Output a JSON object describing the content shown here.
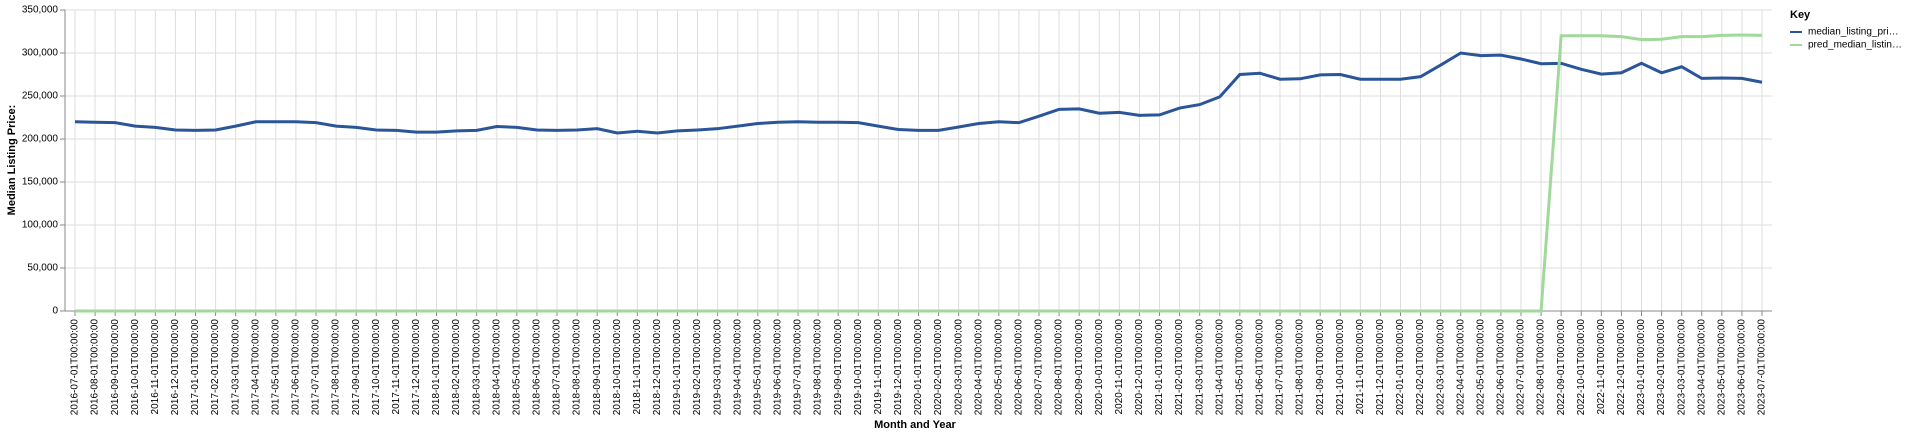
{
  "chart_data": {
    "type": "line",
    "x_label": "Month and Year",
    "y_label": "Median Listing Price:",
    "legend_title": "Key",
    "legend": "right",
    "grid": true,
    "categories": [
      "2016-07-01T00:00:00",
      "2016-08-01T00:00:00",
      "2016-09-01T00:00:00",
      "2016-10-01T00:00:00",
      "2016-11-01T00:00:00",
      "2016-12-01T00:00:00",
      "2017-01-01T00:00:00",
      "2017-02-01T00:00:00",
      "2017-03-01T00:00:00",
      "2017-04-01T00:00:00",
      "2017-05-01T00:00:00",
      "2017-06-01T00:00:00",
      "2017-07-01T00:00:00",
      "2017-08-01T00:00:00",
      "2017-09-01T00:00:00",
      "2017-10-01T00:00:00",
      "2017-11-01T00:00:00",
      "2017-12-01T00:00:00",
      "2018-01-01T00:00:00",
      "2018-02-01T00:00:00",
      "2018-03-01T00:00:00",
      "2018-04-01T00:00:00",
      "2018-05-01T00:00:00",
      "2018-06-01T00:00:00",
      "2018-07-01T00:00:00",
      "2018-08-01T00:00:00",
      "2018-09-01T00:00:00",
      "2018-10-01T00:00:00",
      "2018-11-01T00:00:00",
      "2018-12-01T00:00:00",
      "2019-01-01T00:00:00",
      "2019-02-01T00:00:00",
      "2019-03-01T00:00:00",
      "2019-04-01T00:00:00",
      "2019-05-01T00:00:00",
      "2019-06-01T00:00:00",
      "2019-07-01T00:00:00",
      "2019-08-01T00:00:00",
      "2019-09-01T00:00:00",
      "2019-10-01T00:00:00",
      "2019-11-01T00:00:00",
      "2019-12-01T00:00:00",
      "2020-01-01T00:00:00",
      "2020-02-01T00:00:00",
      "2020-03-01T00:00:00",
      "2020-04-01T00:00:00",
      "2020-05-01T00:00:00",
      "2020-06-01T00:00:00",
      "2020-07-01T00:00:00",
      "2020-08-01T00:00:00",
      "2020-09-01T00:00:00",
      "2020-10-01T00:00:00",
      "2020-11-01T00:00:00",
      "2020-12-01T00:00:00",
      "2021-01-01T00:00:00",
      "2021-02-01T00:00:00",
      "2021-03-01T00:00:00",
      "2021-04-01T00:00:00",
      "2021-05-01T00:00:00",
      "2021-06-01T00:00:00",
      "2021-07-01T00:00:00",
      "2021-08-01T00:00:00",
      "2021-09-01T00:00:00",
      "2021-10-01T00:00:00",
      "2021-11-01T00:00:00",
      "2021-12-01T00:00:00",
      "2022-01-01T00:00:00",
      "2022-02-01T00:00:00",
      "2022-03-01T00:00:00",
      "2022-04-01T00:00:00",
      "2022-05-01T00:00:00",
      "2022-06-01T00:00:00",
      "2022-07-01T00:00:00",
      "2022-08-01T00:00:00",
      "2022-09-01T00:00:00",
      "2022-10-01T00:00:00",
      "2022-11-01T00:00:00",
      "2022-12-01T00:00:00",
      "2023-01-01T00:00:00",
      "2023-02-01T00:00:00",
      "2023-03-01T00:00:00",
      "2023-04-01T00:00:00",
      "2023-05-01T00:00:00",
      "2023-06-01T00:00:00",
      "2023-07-01T00:00:00"
    ],
    "series": [
      {
        "name": "median_listing_pri…",
        "color": "#2a5599",
        "values": [
          220000,
          219500,
          219000,
          215000,
          213500,
          210500,
          210000,
          210500,
          215000,
          220000,
          220000,
          220000,
          219000,
          215000,
          213500,
          210500,
          210000,
          208000,
          208000,
          209500,
          210000,
          214500,
          213500,
          210500,
          210000,
          210500,
          212000,
          207000,
          209000,
          207000,
          209500,
          210500,
          212000,
          215000,
          218000,
          219500,
          220000,
          219500,
          219500,
          219000,
          215000,
          211000,
          210000,
          210000,
          214000,
          218000,
          220000,
          219000,
          226500,
          234500,
          235000,
          230000,
          231000,
          227500,
          228000,
          236000,
          240000,
          249000,
          275000,
          276500,
          269500,
          270000,
          274500,
          275000,
          269500,
          269500,
          269500,
          272500,
          286000,
          300000,
          297000,
          297500,
          293000,
          287500,
          288000,
          281000,
          275500,
          277000,
          288000,
          277000,
          284000,
          270500,
          271000,
          270500,
          266000
        ]
      },
      {
        "name": "pred_median_listin…",
        "color": "#a1d99b",
        "values": [
          0,
          0,
          0,
          0,
          0,
          0,
          0,
          0,
          0,
          0,
          0,
          0,
          0,
          0,
          0,
          0,
          0,
          0,
          0,
          0,
          0,
          0,
          0,
          0,
          0,
          0,
          0,
          0,
          0,
          0,
          0,
          0,
          0,
          0,
          0,
          0,
          0,
          0,
          0,
          0,
          0,
          0,
          0,
          0,
          0,
          0,
          0,
          0,
          0,
          0,
          0,
          0,
          0,
          0,
          0,
          0,
          0,
          0,
          0,
          0,
          0,
          0,
          0,
          0,
          0,
          0,
          0,
          0,
          0,
          0,
          0,
          0,
          0,
          0,
          320000,
          320000,
          320000,
          319000,
          315500,
          316000,
          319000,
          319000,
          320500,
          321000,
          320500
        ]
      }
    ],
    "ylim": [
      0,
      350000
    ],
    "yticks": [
      0,
      {
        "value": 50000,
        "label": "50,000"
      },
      {
        "value": 100000,
        "label": "100,000"
      },
      {
        "value": 150000,
        "label": "150,000"
      },
      {
        "value": 200000,
        "label": "200,000"
      },
      {
        "value": 250000,
        "label": "250,000"
      },
      {
        "value": 300000,
        "label": "300,000"
      },
      {
        "value": 350000,
        "label": "350,000"
      }
    ]
  }
}
